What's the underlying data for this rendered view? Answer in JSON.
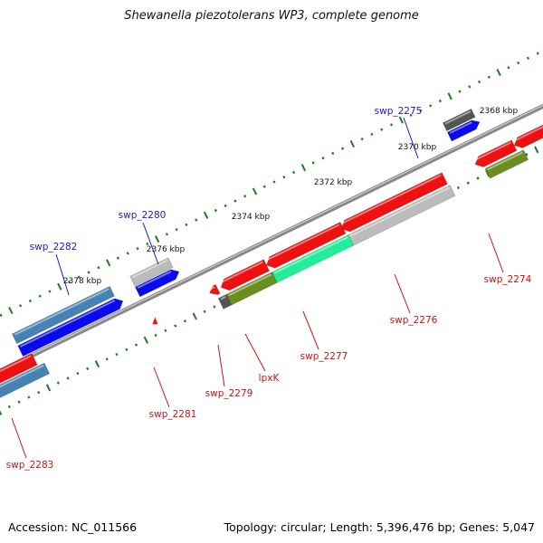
{
  "title": "Shewanella piezotolerans WP3, complete genome",
  "footer": {
    "accession": "Accession: NC_011566",
    "topology": "Topology: circular; Length: 5,396,476 bp; Genes: 5,047"
  },
  "colors": {
    "backbone": "#888888",
    "tick": "#1f7a1f",
    "forward_label": "#1a1acc",
    "reverse_label": "#cc1111",
    "red": "#ee1111",
    "blue": "#0a0aee",
    "steelblue": "#4682b4",
    "gray": "#bbbbbb",
    "darkgray": "#555555",
    "olive": "#6b8e23",
    "spring": "#22ee99"
  },
  "kbp_labels": [
    "2368 kbp",
    "2370 kbp",
    "2372 kbp",
    "2374 kbp",
    "2376 kbp",
    "2378 kbp"
  ],
  "gene_labels": [
    {
      "text": "swp_2275",
      "strand": "forward"
    },
    {
      "text": "swp_2280",
      "strand": "forward"
    },
    {
      "text": "swp_2282",
      "strand": "forward"
    },
    {
      "text": "swp_2274",
      "strand": "reverse"
    },
    {
      "text": "swp_2276",
      "strand": "reverse"
    },
    {
      "text": "swp_2277",
      "strand": "reverse"
    },
    {
      "text": "lpxK",
      "strand": "reverse"
    },
    {
      "text": "swp_2279",
      "strand": "reverse"
    },
    {
      "text": "swp_2281",
      "strand": "reverse"
    },
    {
      "text": "swp_2283",
      "strand": "reverse"
    }
  ]
}
